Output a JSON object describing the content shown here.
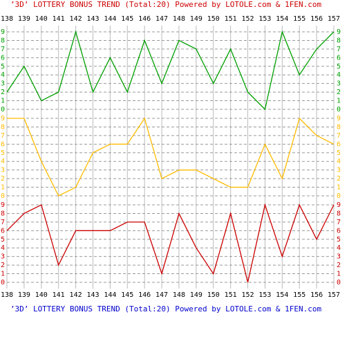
{
  "chart_data": {
    "type": "line",
    "title": "’3D’ LOTTERY BONUS TREND (Total:20)  Powered by LOTOLE.com & 1FEN.com",
    "categories": [
      "138",
      "139",
      "140",
      "141",
      "142",
      "143",
      "144",
      "145",
      "146",
      "147",
      "148",
      "149",
      "150",
      "151",
      "152",
      "153",
      "154",
      "155",
      "156",
      "157"
    ],
    "ylim": [
      0,
      9
    ],
    "yticks": [
      0,
      1,
      2,
      3,
      4,
      5,
      6,
      7,
      8,
      9
    ],
    "grid": true,
    "series": [
      {
        "color": "#00a000",
        "values": [
          2,
          5,
          1,
          2,
          9,
          2,
          6,
          2,
          8,
          3,
          8,
          7,
          3,
          7,
          2,
          0,
          9,
          4,
          7,
          9
        ]
      },
      {
        "color": "#ffbb00",
        "values": [
          9,
          9,
          4,
          0,
          1,
          5,
          6,
          6,
          9,
          2,
          3,
          3,
          2,
          1,
          1,
          6,
          2,
          9,
          7,
          6
        ]
      },
      {
        "color": "#cc0000",
        "values": [
          6,
          8,
          9,
          2,
          6,
          6,
          6,
          7,
          7,
          1,
          8,
          4,
          1,
          8,
          0,
          9,
          3,
          9,
          5,
          9
        ]
      }
    ]
  }
}
